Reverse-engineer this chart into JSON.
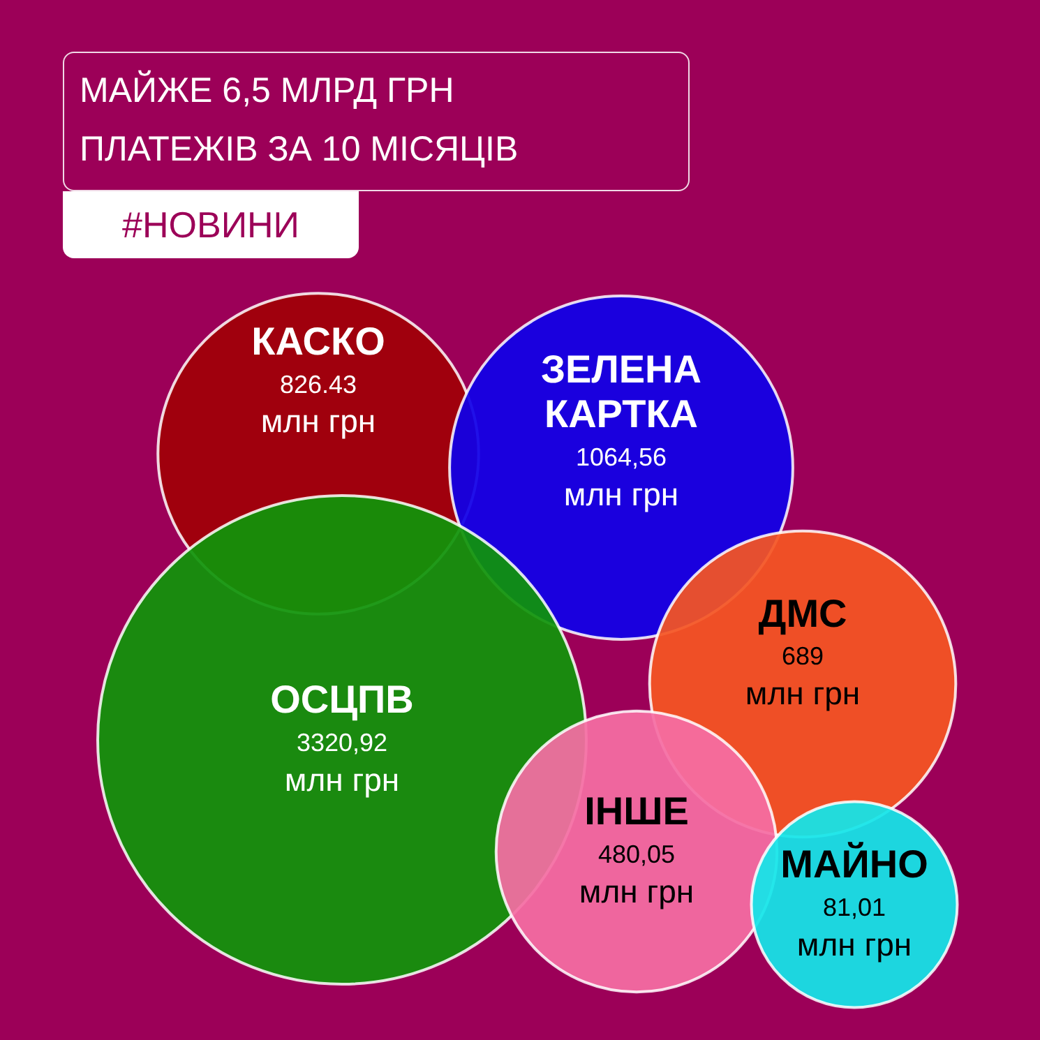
{
  "chart_data": {
    "type": "other",
    "title": "МАЙЖЕ 6,5 МЛРД ГРН ПЛАТЕЖІВ ЗА 10 МІСЯЦІВ",
    "subtitle": "#НОВИНИ",
    "categories": [
      "КАСКО",
      "ЗЕЛЕНА КАРТКА",
      "ОСЦПВ",
      "ДМС",
      "ІНШЕ",
      "МАЙНО"
    ],
    "values": [
      826.43,
      1064.56,
      3320.92,
      689,
      480.05,
      81.01
    ],
    "value_labels": [
      "826.43\nмлн грн",
      "1064,56\nмлн грн",
      "3320,92\nмлн грн",
      "689\nмлн грн",
      "480,05\nмлн грн",
      "81,01\nмлн грн"
    ],
    "colors": [
      "#a00008",
      "#1000e8",
      "#10940a",
      "#f55522",
      "#f56ea4",
      "#13e6ea"
    ]
  }
}
